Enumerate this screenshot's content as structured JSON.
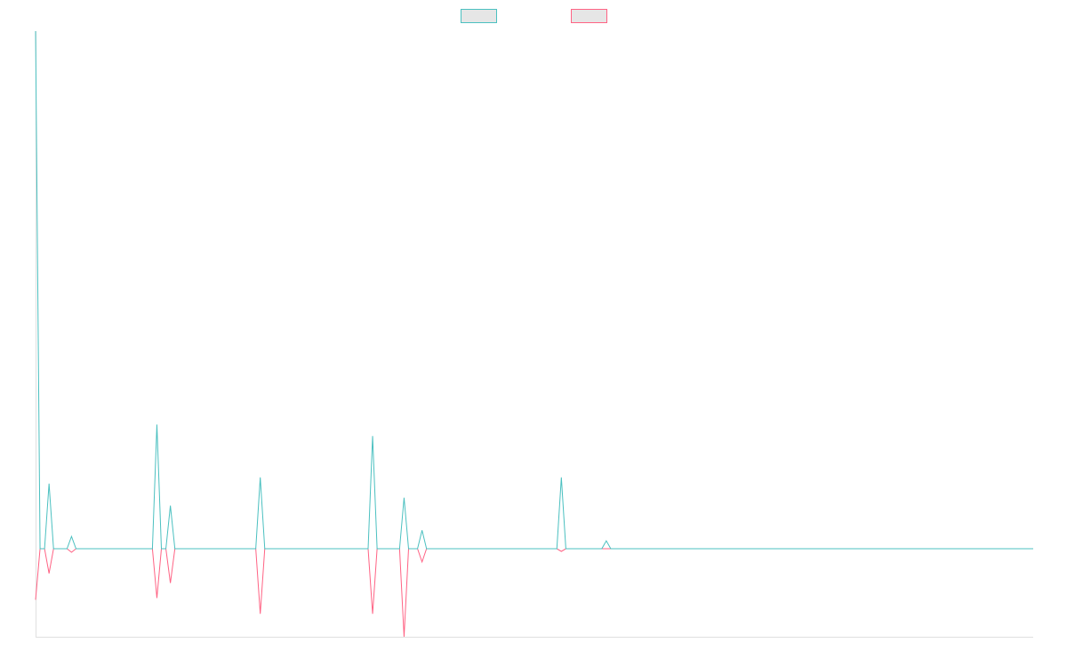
{
  "chart_data": {
    "type": "line",
    "x": [
      0,
      1,
      2,
      3,
      4,
      7,
      8,
      9,
      26,
      27,
      28,
      29,
      30,
      31,
      49,
      50,
      51,
      74,
      75,
      76,
      81,
      82,
      83,
      85,
      86,
      87,
      116,
      117,
      118,
      126,
      127,
      128,
      222
    ],
    "xlim": [
      0,
      222
    ],
    "ylim": [
      -1,
      5.88
    ],
    "series": [
      {
        "color": "#4bc0c0",
        "values": [
          5.88,
          0,
          0,
          0.74,
          0,
          0,
          0.14,
          0,
          0,
          1.41,
          0,
          0,
          0.49,
          0,
          0,
          0.81,
          0,
          0,
          1.28,
          0,
          0,
          0.58,
          0,
          0,
          0.21,
          0,
          0,
          0.81,
          0,
          0,
          0.09,
          0,
          0
        ]
      },
      {
        "color": "#ff6384",
        "values": [
          -0.58,
          0,
          0,
          -0.28,
          0,
          0,
          -0.04,
          0,
          0,
          -0.56,
          0,
          0,
          -0.39,
          0,
          0,
          -0.74,
          0,
          0,
          -0.74,
          0,
          0,
          -1,
          0,
          0,
          -0.15,
          0,
          0,
          -0.03,
          0,
          0,
          0,
          0,
          0
        ]
      }
    ]
  }
}
